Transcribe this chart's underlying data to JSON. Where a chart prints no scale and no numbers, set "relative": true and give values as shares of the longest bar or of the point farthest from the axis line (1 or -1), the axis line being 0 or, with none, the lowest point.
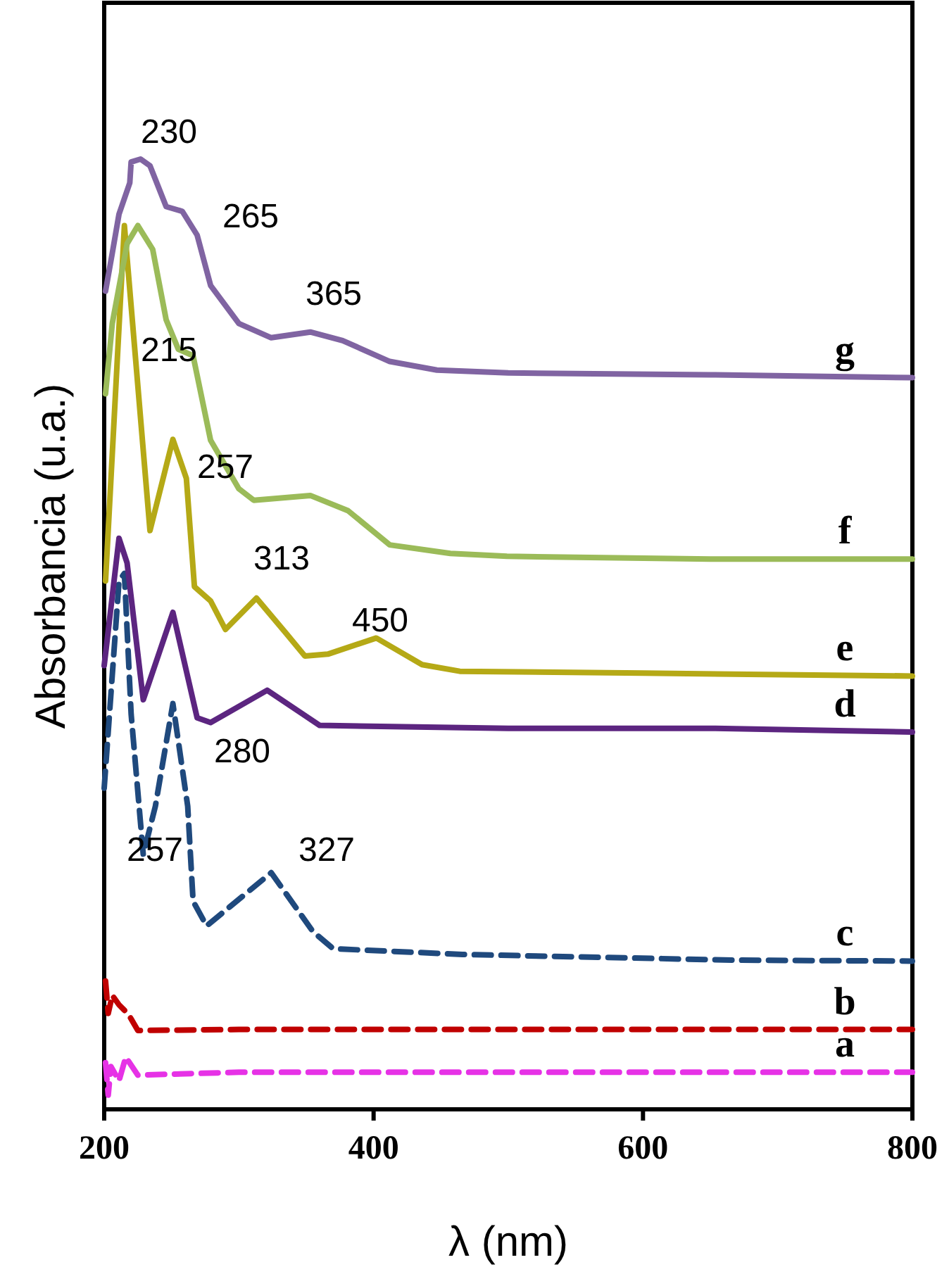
{
  "chart_data": {
    "type": "line",
    "relative": true,
    "xlabel": "λ (nm)",
    "ylabel": "Absorbancia (u.a.)",
    "xlim": [
      200,
      800
    ],
    "xticks": [
      200,
      400,
      600,
      800
    ],
    "grid": false,
    "series": [
      {
        "name": "a",
        "color": "#e632e6",
        "line_style": "dashed",
        "x": [
          201,
          203,
          205,
          211,
          216,
          225,
          300,
          450,
          600,
          800
        ],
        "values": [
          0.049,
          0.015,
          0.045,
          0.03,
          0.055,
          0.036,
          0.039,
          0.039,
          0.039,
          0.039
        ]
      },
      {
        "name": "b",
        "color": "#c00000",
        "line_style": "dashed",
        "x": [
          201,
          203,
          206,
          211,
          218,
          225,
          300,
          450,
          600,
          800
        ],
        "values": [
          0.135,
          0.101,
          0.12,
          0.11,
          0.1,
          0.083,
          0.084,
          0.084,
          0.084,
          0.084
        ]
      },
      {
        "name": "c",
        "color": "#1f497d",
        "line_style": "dashed",
        "x": [
          200,
          211,
          215,
          220,
          229,
          238,
          251,
          262,
          266,
          276,
          324,
          355,
          370,
          466,
          668,
          800
        ],
        "values": [
          0.338,
          0.556,
          0.564,
          0.416,
          0.268,
          0.319,
          0.427,
          0.319,
          0.219,
          0.193,
          0.249,
          0.187,
          0.169,
          0.163,
          0.157,
          0.156
        ]
      },
      {
        "name": "d",
        "color": "#5c2580",
        "line_style": "solid",
        "x": [
          200,
          211,
          217,
          229,
          251,
          269,
          279,
          321,
          360,
          500,
          650,
          800
        ],
        "values": [
          0.467,
          0.601,
          0.575,
          0.431,
          0.523,
          0.412,
          0.407,
          0.441,
          0.404,
          0.401,
          0.401,
          0.397
        ]
      },
      {
        "name": "e",
        "color": "#b5a916",
        "line_style": "solid",
        "x": [
          201,
          215,
          234,
          251,
          261,
          267,
          279,
          290,
          313,
          335,
          349,
          366,
          402,
          436,
          464,
          600,
          800
        ],
        "values": [
          0.556,
          0.93,
          0.609,
          0.705,
          0.664,
          0.55,
          0.535,
          0.505,
          0.538,
          0.501,
          0.477,
          0.479,
          0.496,
          0.468,
          0.461,
          0.459,
          0.456
        ]
      },
      {
        "name": "f",
        "color": "#9bbb59",
        "line_style": "solid",
        "x": [
          201,
          206,
          217,
          225,
          236,
          246,
          255,
          266,
          279,
          300,
          311,
          353,
          381,
          412,
          457,
          499,
          650,
          800
        ],
        "values": [
          0.753,
          0.827,
          0.911,
          0.93,
          0.905,
          0.831,
          0.8,
          0.793,
          0.704,
          0.653,
          0.641,
          0.646,
          0.63,
          0.594,
          0.585,
          0.582,
          0.579,
          0.579
        ]
      },
      {
        "name": "g",
        "color": "#8064a2",
        "line_style": "solid",
        "x": [
          201,
          206,
          211,
          219,
          220,
          227,
          234,
          246,
          258,
          269,
          279,
          300,
          324,
          353,
          377,
          412,
          447,
          500,
          650,
          800
        ],
        "values": [
          0.861,
          0.901,
          0.942,
          0.975,
          0.997,
          1.0,
          0.993,
          0.95,
          0.945,
          0.92,
          0.867,
          0.827,
          0.812,
          0.818,
          0.809,
          0.787,
          0.778,
          0.775,
          0.773,
          0.77
        ]
      }
    ],
    "annotations": [
      "230",
      "265",
      "365",
      "215",
      "257",
      "313",
      "450",
      "280",
      "327",
      "257"
    ]
  }
}
